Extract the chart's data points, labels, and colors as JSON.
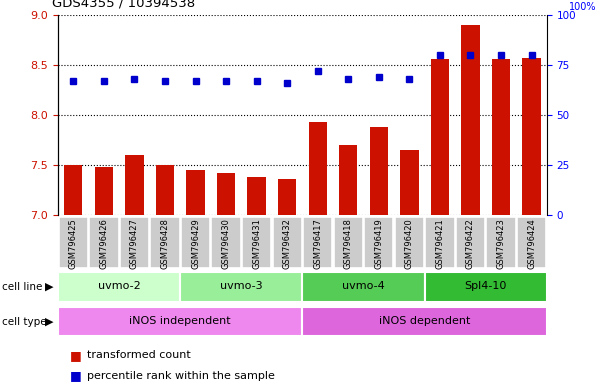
{
  "title": "GDS4355 / 10394538",
  "samples": [
    "GSM796425",
    "GSM796426",
    "GSM796427",
    "GSM796428",
    "GSM796429",
    "GSM796430",
    "GSM796431",
    "GSM796432",
    "GSM796417",
    "GSM796418",
    "GSM796419",
    "GSM796420",
    "GSM796421",
    "GSM796422",
    "GSM796423",
    "GSM796424"
  ],
  "transformed_count": [
    7.5,
    7.48,
    7.6,
    7.5,
    7.45,
    7.42,
    7.38,
    7.36,
    7.93,
    7.7,
    7.88,
    7.65,
    8.56,
    8.9,
    8.56,
    8.57
  ],
  "percentile_rank": [
    67,
    67,
    68,
    67,
    67,
    67,
    67,
    66,
    72,
    68,
    69,
    68,
    80,
    80,
    80,
    80
  ],
  "bar_color": "#cc1100",
  "dot_color": "#0000cc",
  "ylim_left": [
    7,
    9
  ],
  "ylim_right": [
    0,
    100
  ],
  "yticks_left": [
    7,
    7.5,
    8,
    8.5,
    9
  ],
  "yticks_right": [
    0,
    25,
    50,
    75,
    100
  ],
  "cell_line_groups": [
    {
      "label": "uvmo-2",
      "start": 0,
      "end": 3,
      "color": "#ccffcc"
    },
    {
      "label": "uvmo-3",
      "start": 4,
      "end": 7,
      "color": "#99ee99"
    },
    {
      "label": "uvmo-4",
      "start": 8,
      "end": 11,
      "color": "#55cc55"
    },
    {
      "label": "Spl4-10",
      "start": 12,
      "end": 15,
      "color": "#33bb33"
    }
  ],
  "cell_type_groups": [
    {
      "label": "iNOS independent",
      "start": 0,
      "end": 7,
      "color": "#ee88ee"
    },
    {
      "label": "iNOS dependent",
      "start": 8,
      "end": 15,
      "color": "#dd66dd"
    }
  ],
  "cell_line_label": "cell line",
  "cell_type_label": "cell type",
  "legend_bar_label": "transformed count",
  "legend_dot_label": "percentile rank within the sample",
  "background_color": "#ffffff",
  "tick_box_color": "#cccccc",
  "grid_linestyle": "dotted"
}
